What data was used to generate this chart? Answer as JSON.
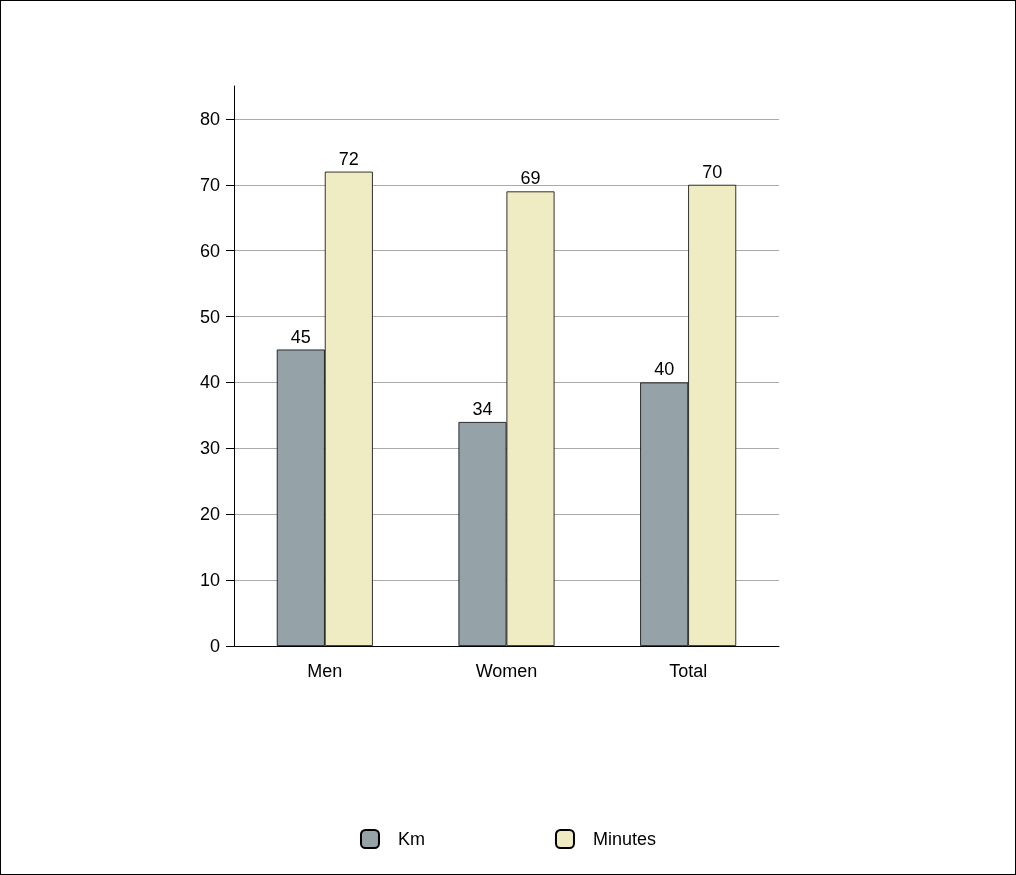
{
  "chart_data": {
    "type": "bar",
    "categories": [
      "Men",
      "Women",
      "Total"
    ],
    "series": [
      {
        "name": "Km",
        "color": "#95a3a9",
        "values": [
          45,
          34,
          40
        ]
      },
      {
        "name": "Minutes",
        "color": "#efebc3",
        "values": [
          72,
          69,
          70
        ]
      }
    ],
    "ylim": [
      0,
      85
    ],
    "yticks": [
      0,
      10,
      20,
      30,
      40,
      50,
      60,
      70,
      80
    ],
    "grid": "y",
    "legend": "bottom",
    "data_labels": true
  }
}
